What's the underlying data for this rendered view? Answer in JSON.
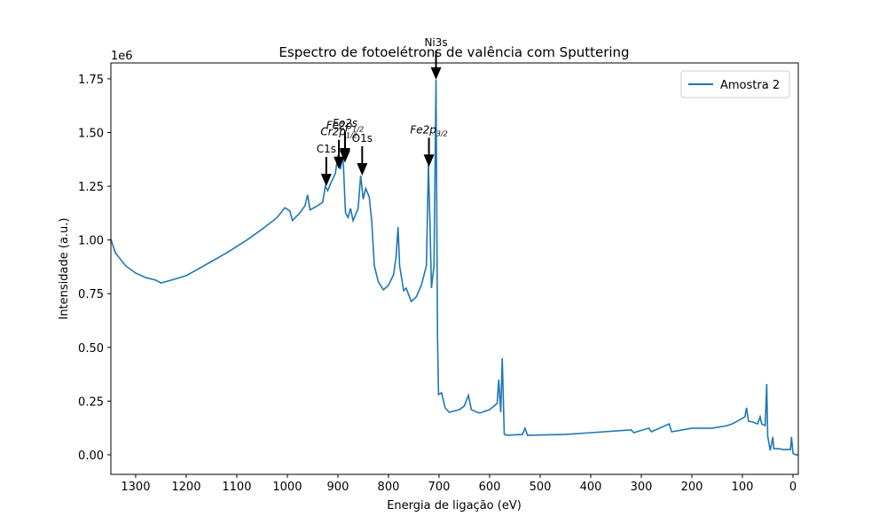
{
  "chart_data": {
    "type": "line",
    "title": "Espectro de fotoelétrons de valência com Sputtering",
    "x_label": "Energia de ligação (eV)",
    "y_label": "Intensidade (a.u.)",
    "y_offset_label": "1e6",
    "xlim": [
      1349,
      -10.5
    ],
    "ylim": [
      -0.091,
      1.824
    ],
    "xticks": [
      1300,
      1200,
      1100,
      1000,
      900,
      800,
      700,
      600,
      500,
      400,
      300,
      200,
      100,
      0
    ],
    "yticks": [
      {
        "value": 0,
        "label": "0.00"
      },
      {
        "value": 0.25,
        "label": "0.25"
      },
      {
        "value": 0.5,
        "label": "0.50"
      },
      {
        "value": 0.75,
        "label": "0.75"
      },
      {
        "value": 1,
        "label": "1.00"
      },
      {
        "value": 1.25,
        "label": "1.25"
      },
      {
        "value": 1.5,
        "label": "1.50"
      },
      {
        "value": 1.75,
        "label": "1.75"
      }
    ],
    "legend": "upper right",
    "x": [
      1350,
      1340,
      1320,
      1300,
      1280,
      1260,
      1250,
      1230,
      1200,
      1180,
      1150,
      1120,
      1100,
      1080,
      1050,
      1020,
      1005,
      995,
      990,
      975,
      965,
      960,
      955,
      940,
      930,
      925,
      920,
      915,
      905,
      900,
      895,
      890,
      885,
      880,
      875,
      870,
      860,
      855,
      850,
      845,
      838,
      833,
      828,
      820,
      810,
      800,
      790,
      785,
      781,
      778,
      770,
      765,
      755,
      745,
      735,
      725,
      721,
      718,
      715,
      710,
      706,
      703,
      701,
      695,
      688,
      680,
      660,
      650,
      642,
      636,
      620,
      600,
      585,
      582,
      578,
      575,
      571,
      565,
      535,
      530,
      525,
      450,
      400,
      320,
      315,
      285,
      280,
      245,
      240,
      200,
      160,
      130,
      120,
      110,
      95,
      92,
      88,
      80,
      70,
      65,
      62,
      55,
      52,
      50,
      45,
      40,
      38,
      30,
      20,
      5,
      3,
      0,
      -5,
      -10
    ],
    "series": [
      {
        "name": "Amostra 2",
        "color": "#1f77b4",
        "values": [
          1.01,
          0.94,
          0.88,
          0.846,
          0.825,
          0.813,
          0.8,
          0.813,
          0.834,
          0.86,
          0.9,
          0.94,
          0.97,
          1.0,
          1.05,
          1.105,
          1.15,
          1.135,
          1.09,
          1.127,
          1.16,
          1.21,
          1.14,
          1.16,
          1.176,
          1.25,
          1.23,
          1.26,
          1.31,
          1.395,
          1.33,
          1.395,
          1.127,
          1.105,
          1.147,
          1.09,
          1.147,
          1.3,
          1.19,
          1.24,
          1.2,
          1.085,
          0.88,
          0.805,
          0.768,
          0.789,
          0.838,
          0.92,
          1.06,
          0.88,
          0.764,
          0.776,
          0.714,
          0.735,
          0.789,
          0.88,
          1.354,
          1.085,
          0.776,
          0.88,
          1.746,
          0.549,
          0.28,
          0.289,
          0.219,
          0.198,
          0.21,
          0.227,
          0.277,
          0.21,
          0.194,
          0.21,
          0.24,
          0.35,
          0.198,
          0.45,
          0.095,
          0.091,
          0.095,
          0.124,
          0.091,
          0.095,
          0.103,
          0.116,
          0.103,
          0.124,
          0.107,
          0.144,
          0.107,
          0.124,
          0.124,
          0.136,
          0.144,
          0.157,
          0.177,
          0.219,
          0.157,
          0.153,
          0.144,
          0.177,
          0.144,
          0.136,
          0.33,
          0.087,
          0.02,
          0.083,
          0.029,
          0.029,
          0.025,
          0.025,
          0.083,
          0.008,
          0,
          0
        ]
      }
    ],
    "annotations": [
      {
        "text": "C1s",
        "x": 923,
        "y": 1.25
      },
      {
        "text": "Cr2p",
        "sub": "1/2",
        "italic": true,
        "x": 898,
        "y": 1.33
      },
      {
        "text": "Fe2s",
        "italic": true,
        "x": 886,
        "y": 1.37
      },
      {
        "text": "Fe2p",
        "sub": "1/2",
        "italic": true,
        "x": 886,
        "y": 1.36
      },
      {
        "text": "O1s",
        "x": 852,
        "y": 1.3
      },
      {
        "text": "Fe2p",
        "sub": "3/2",
        "italic": true,
        "x": 720,
        "y": 1.34
      },
      {
        "text": "Ni3s",
        "x": 706,
        "y": 1.746
      }
    ]
  }
}
